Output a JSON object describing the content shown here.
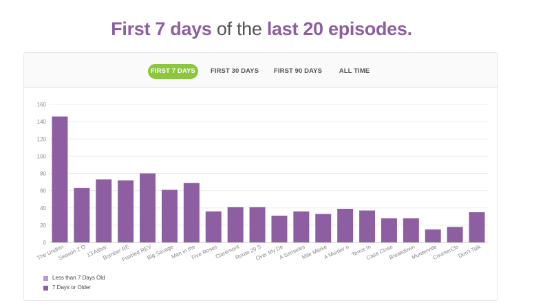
{
  "headline": {
    "part1": "First 7 days",
    "part2": " of the ",
    "part3": "last 20 episodes."
  },
  "tabs": [
    {
      "label": "FIRST 7 DAYS",
      "active": true
    },
    {
      "label": "FIRST 30 DAYS",
      "active": false
    },
    {
      "label": "FIRST 90 DAYS",
      "active": false
    },
    {
      "label": "ALL TIME",
      "active": false
    }
  ],
  "colors": {
    "accent": "#8cc63f",
    "series_old": "#8e5ea2",
    "series_new": "#b99ad0",
    "headline_highlight": "#8e5ea2"
  },
  "legend": [
    {
      "label": "Less than 7 Days Old",
      "color": "#b99ad0"
    },
    {
      "label": "7 Days or Older",
      "color": "#8e5ea2"
    }
  ],
  "chart_data": {
    "type": "bar",
    "categories": [
      "The Undhin",
      "Season 2 O",
      "13 Alibis:",
      "Bomber RE",
      "Framed REV",
      "Big Savage",
      "Man in the",
      "Five Roses",
      "Claremont",
      "Route 29 S",
      "Over My De",
      "A Senseles",
      "Mile Marke",
      "A Murder o",
      "Terror In",
      "Case Close",
      "Breakdown",
      "Murderville",
      "CounterClo",
      "Don't Talk"
    ],
    "series": [
      {
        "name": "Less than 7 Days Old",
        "values": [
          0,
          0,
          0,
          0,
          0,
          0,
          0,
          0,
          0,
          0,
          0,
          0,
          0,
          0,
          0,
          0,
          0,
          0,
          0,
          0
        ]
      },
      {
        "name": "7 Days or Older",
        "values": [
          146,
          63,
          73,
          72,
          80,
          61,
          69,
          36,
          41,
          41,
          31,
          36,
          33,
          39,
          37,
          28,
          28,
          15,
          18,
          35
        ]
      }
    ],
    "ylim": [
      0,
      160
    ],
    "yticks": [
      0,
      20,
      40,
      60,
      80,
      100,
      120,
      140,
      160
    ],
    "stacked": true,
    "grid": true,
    "legend_position": "bottom-left"
  }
}
